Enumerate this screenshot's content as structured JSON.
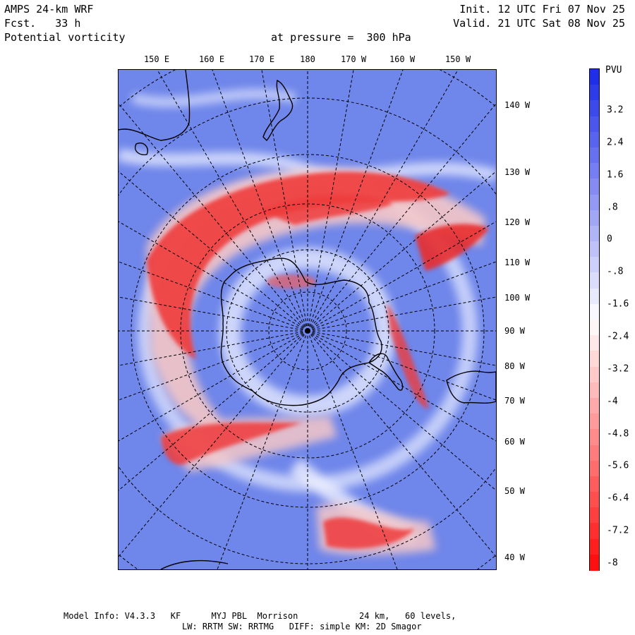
{
  "header": {
    "model": "AMPS 24-km WRF",
    "forecast": "Fcst.   33 h",
    "field": "Potential vorticity",
    "level": "at pressure =  300 hPa",
    "init": "Init. 12 UTC Fri 07 Nov 25",
    "valid": "Valid. 21 UTC Sat 08 Nov 25"
  },
  "longitude_labels": [
    "150 E",
    "160 E",
    "170 E",
    "180",
    "170 W",
    "160 W",
    "150 W"
  ],
  "latitude_labels": [
    "140 W",
    "130 W",
    "120 W",
    "110 W",
    "100 W",
    "90 W",
    "80 W",
    "70 W",
    "60 W",
    "50 W",
    "40 W"
  ],
  "colorbar": {
    "unit": "PVU",
    "labels": [
      "3.2",
      "2.4",
      "1.6",
      ".8",
      "0",
      "-.8",
      "-1.6",
      "-2.4",
      "-3.2",
      "-4",
      "-4.8",
      "-5.6",
      "-6.4",
      "-7.2",
      "-8"
    ],
    "colors": {
      "positive_max": "#1f2ee8",
      "zero": "#ffffff",
      "negative_max": "#ff1010"
    }
  },
  "map_colors": {
    "background": "#6f86ea",
    "high_pv": "#ee3b3b",
    "transition": "#f4c7c7",
    "white": "#f6f6ff"
  },
  "footer": {
    "line1": "Model Info: V4.3.3   KF      MYJ PBL  Morrison            24 km,   60 levels,",
    "line2": "LW: RRTM SW: RRTMG   DIFF: simple KM: 2D Smagor"
  }
}
